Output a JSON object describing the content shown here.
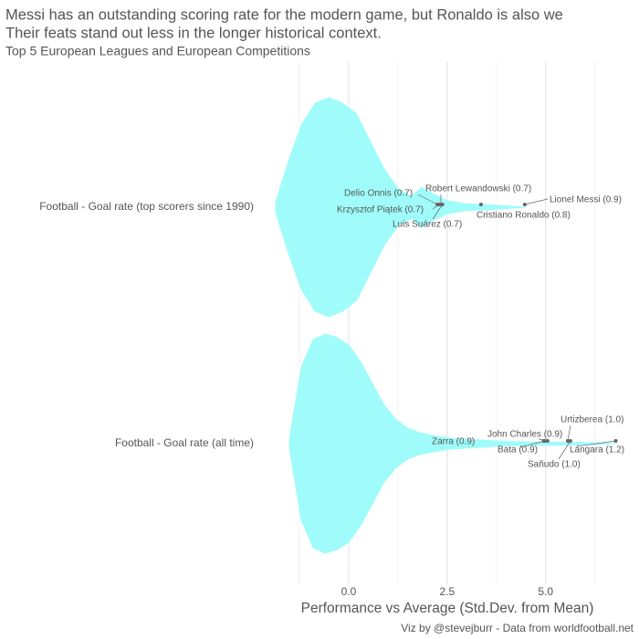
{
  "chart_data": {
    "type": "violin",
    "title": [
      "Messi has an outstanding scoring rate for the modern game, but Ronaldo is also we",
      "Their feats stand out less in the longer historical context."
    ],
    "subtitle": "Top 5 European Leagues and European Competitions",
    "x_label": "Performance vs Average (Std.Dev. from Mean)",
    "caption": "Viz by @stevejburr - Data from worldfootball.net",
    "categories": [
      "Football - Goal rate (top scorers since 1990)",
      "Football - Goal rate (all time)"
    ],
    "color": "#9ffcfa",
    "point_color": "#666666",
    "xlim": [
      -2.13,
      7.37
    ],
    "xticks": [
      {
        "value": 0,
        "label": "0.0"
      },
      {
        "value": 2.5,
        "label": "2.5"
      },
      {
        "value": 5,
        "label": "5.0"
      }
    ],
    "minor_xticks": [
      -1.25,
      1.25,
      3.75,
      6.25
    ],
    "grid": true,
    "series": [
      {
        "x": [
          -1.85,
          -1.5,
          -1.2,
          -0.85,
          -0.5,
          -0.15,
          0.2,
          0.55,
          0.9,
          1.25,
          1.6,
          1.85,
          2.15,
          2.5,
          3.0,
          3.7,
          4.5
        ],
        "values": [
          0.05,
          0.45,
          0.75,
          0.95,
          1.0,
          0.95,
          0.85,
          0.6,
          0.35,
          0.17,
          0.1,
          0.18,
          0.12,
          0.06,
          0.03,
          0.02,
          0
        ]
      },
      {
        "x": [
          -1.5,
          -1.2,
          -0.9,
          -0.6,
          -0.3,
          0,
          0.3,
          0.6,
          0.9,
          1.2,
          1.5,
          1.8,
          2.2,
          2.6,
          3.0,
          3.5,
          4.0,
          5.0,
          6.0,
          6.8
        ],
        "values": [
          0.05,
          0.7,
          0.95,
          1.0,
          0.97,
          0.9,
          0.75,
          0.55,
          0.35,
          0.22,
          0.14,
          0.1,
          0.07,
          0.05,
          0.04,
          0.03,
          0.02,
          0.015,
          0.01,
          0
        ]
      }
    ],
    "points": [
      {
        "category": 0,
        "label": "Lionel Messi (0.9)",
        "x": 4.47
      },
      {
        "category": 0,
        "label": "Cristiano Ronaldo (0.8)",
        "x": 3.36
      },
      {
        "category": 0,
        "label": "Robert Lewandowski (0.7)",
        "x": 2.34
      },
      {
        "category": 0,
        "label": "Delio Onnis (0.7)",
        "x": 2.25
      },
      {
        "category": 0,
        "label": "Krzysztof Piątek (0.7)",
        "x": 2.29
      },
      {
        "category": 0,
        "label": "Luis Suárez (0.7)",
        "x": 2.38
      },
      {
        "category": 1,
        "label": "Zarra (0.9)",
        "x": 4.95
      },
      {
        "category": 1,
        "label": "John Charles (0.9)",
        "x": 5.05
      },
      {
        "category": 1,
        "label": "Bata (0.9)",
        "x": 4.98
      },
      {
        "category": 1,
        "label": "Urtizberea (1.0)",
        "x": 5.56
      },
      {
        "category": 1,
        "label": "Sañudo (1.0)",
        "x": 5.63
      },
      {
        "category": 1,
        "label": "Lángara (1.2)",
        "x": 6.78
      }
    ]
  }
}
